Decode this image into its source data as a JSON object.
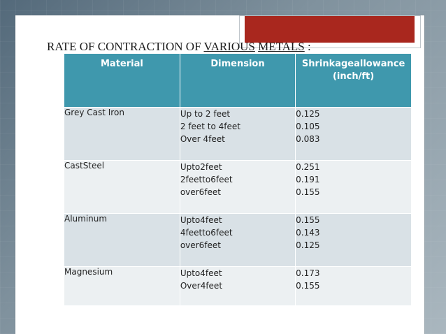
{
  "slide": {
    "title_parts": [
      "RATE OF CONTRACTION OF ",
      "VARIOUS",
      " ",
      "METALS",
      " :"
    ]
  },
  "table": {
    "headers": [
      "Material",
      "Dimension",
      "Shrinkageallowance",
      "(inch/ft)"
    ],
    "rows": [
      {
        "material": "Grey Cast Iron",
        "dimensions": [
          "Up to 2 feet",
          "2 feet to 4feet",
          "Over 4feet"
        ],
        "values": [
          "0.125",
          "0.105",
          "0.083"
        ]
      },
      {
        "material": "CastSteel",
        "dimensions": [
          "Upto2feet",
          "2feetto6feet",
          "over6feet"
        ],
        "values": [
          "0.251",
          "0.191",
          "0.155"
        ]
      },
      {
        "material": "Aluminum",
        "dimensions": [
          "Upto4feet",
          "4feetto6feet",
          "over6feet"
        ],
        "values": [
          "0.155",
          "0.143",
          "0.125"
        ]
      },
      {
        "material": "Magnesium",
        "dimensions": [
          "Upto4feet",
          "Over4feet"
        ],
        "values": [
          "0.173",
          "0.155"
        ]
      }
    ]
  },
  "colors": {
    "header_bg": "#3f98ad",
    "accent": "#a9271e",
    "row_alt": "#d9e1e6",
    "row_light": "#ecf0f2"
  }
}
